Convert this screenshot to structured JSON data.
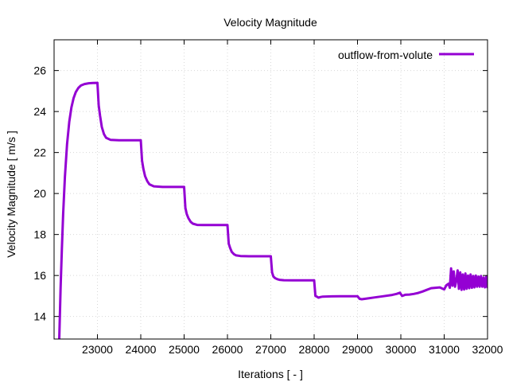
{
  "chart_data": {
    "type": "line",
    "title": "Velocity Magnitude",
    "xlabel": "Iterations [ - ]",
    "ylabel": "Velocity Magnitude [ m/s ]",
    "xlim": [
      22000,
      32000
    ],
    "ylim": [
      12.9,
      27.5
    ],
    "xticks": [
      23000,
      24000,
      25000,
      26000,
      27000,
      28000,
      29000,
      30000,
      31000,
      32000
    ],
    "yticks": [
      14,
      16,
      18,
      20,
      22,
      24,
      26
    ],
    "grid": true,
    "legend_position": "top-right",
    "colors": {
      "series": "#9400d3",
      "grid": "#d8d8d8",
      "axis": "#000000"
    },
    "series": [
      {
        "name": "outflow-from-volute",
        "x": [
          22120,
          22150,
          22180,
          22210,
          22250,
          22300,
          22350,
          22400,
          22450,
          22500,
          22560,
          22620,
          22700,
          22800,
          22900,
          23000,
          23030,
          23060,
          23100,
          23150,
          23200,
          23300,
          23500,
          23800,
          24000,
          24030,
          24060,
          24100,
          24150,
          24200,
          24300,
          24500,
          24800,
          25000,
          25030,
          25060,
          25100,
          25150,
          25200,
          25300,
          25500,
          25800,
          26000,
          26030,
          26060,
          26100,
          26150,
          26200,
          26300,
          26500,
          26800,
          27000,
          27030,
          27060,
          27100,
          27150,
          27200,
          27300,
          27500,
          27800,
          28000,
          28030,
          28060,
          28100,
          28150,
          28200,
          28400,
          28600,
          28800,
          29000,
          29050,
          29100,
          29200,
          29400,
          29600,
          29800,
          29900,
          29980,
          30030,
          30100,
          30200,
          30300,
          30400,
          30500,
          30600,
          30700,
          30800,
          30900,
          31000,
          31050,
          31100,
          31130,
          31160,
          31190,
          31220,
          31250,
          31280,
          31310,
          31340,
          31370,
          31400,
          31430,
          31460,
          31490,
          31520,
          31550,
          31580,
          31610,
          31640,
          31670,
          31700,
          31730,
          31760,
          31790,
          31820,
          31850,
          31880,
          31910,
          31940,
          31970,
          32000
        ],
        "values": [
          12.9,
          15.4,
          17.3,
          19.0,
          20.8,
          22.4,
          23.5,
          24.2,
          24.65,
          24.95,
          25.15,
          25.27,
          25.34,
          25.38,
          25.39,
          25.4,
          24.3,
          23.8,
          23.25,
          22.9,
          22.72,
          22.62,
          22.6,
          22.6,
          22.6,
          21.6,
          21.2,
          20.85,
          20.6,
          20.45,
          20.35,
          20.32,
          20.32,
          20.32,
          19.3,
          19.0,
          18.8,
          18.62,
          18.53,
          18.47,
          18.46,
          18.46,
          18.46,
          17.55,
          17.35,
          17.15,
          17.04,
          16.98,
          16.95,
          16.94,
          16.94,
          16.94,
          16.15,
          15.95,
          15.87,
          15.82,
          15.79,
          15.77,
          15.76,
          15.76,
          15.76,
          15.0,
          14.97,
          14.92,
          14.95,
          14.97,
          14.98,
          14.99,
          14.99,
          14.99,
          14.86,
          14.84,
          14.87,
          14.93,
          14.99,
          15.05,
          15.1,
          15.16,
          15.0,
          15.06,
          15.07,
          15.1,
          15.15,
          15.22,
          15.3,
          15.38,
          15.4,
          15.42,
          15.32,
          15.52,
          15.6,
          15.4,
          16.35,
          15.5,
          16.2,
          15.45,
          15.75,
          16.25,
          15.35,
          16.15,
          15.3,
          16.05,
          15.32,
          16.1,
          15.35,
          16.0,
          15.38,
          16.05,
          15.4,
          15.98,
          15.42,
          16.0,
          15.45,
          15.95,
          15.45,
          15.98,
          15.45,
          15.9,
          15.42,
          15.95,
          15.38
        ]
      }
    ]
  }
}
